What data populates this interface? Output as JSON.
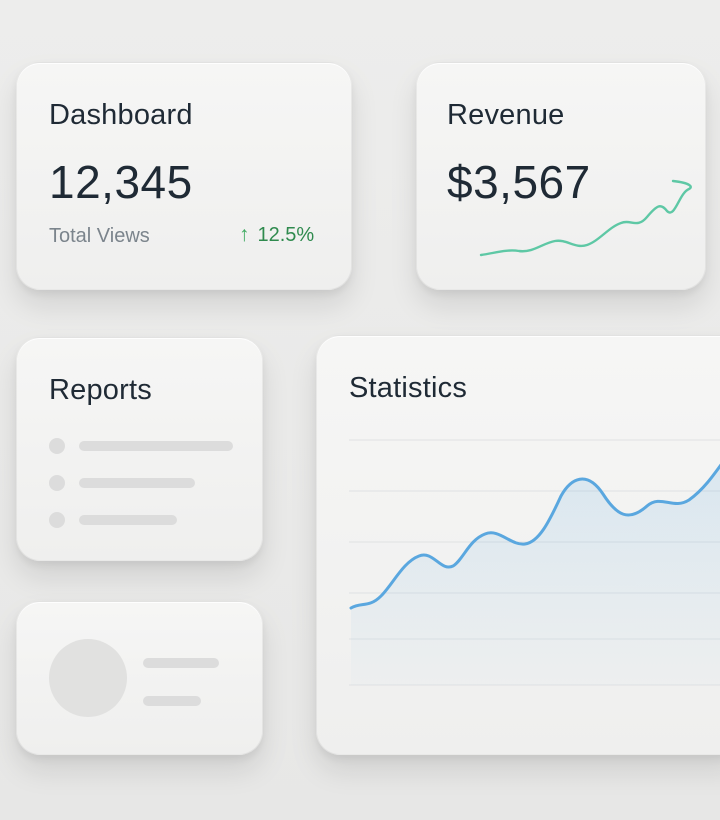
{
  "dashboard": {
    "title": "Dashboard",
    "value": "12,345",
    "subtitle": "Total Views",
    "trend_value": "12.5%"
  },
  "revenue": {
    "title": "Revenue",
    "value": "$3,567"
  },
  "reports": {
    "title": "Reports"
  },
  "statistics": {
    "title": "Statistics"
  },
  "colors": {
    "trend_positive": "#3faa62",
    "sparkline": "#5ec8a5",
    "chart_line": "#5aa7df"
  },
  "icons": {
    "trend": "arrow-up-icon"
  }
}
